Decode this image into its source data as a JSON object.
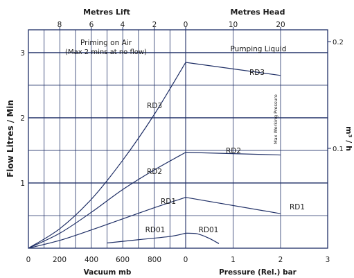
{
  "colors": {
    "frame": "#1f2f66",
    "grid": "#1f2f66",
    "curve": "#1f2f66",
    "text": "#1a1a1a"
  },
  "chart_data": {
    "type": "line",
    "y_axis_label": "Flow Litres / Min",
    "y_ticks": [
      "1",
      "2",
      "3"
    ],
    "y_range": [
      0,
      3.35
    ],
    "right_axis_label": "m³ / h",
    "right_ticks": [
      "0.1",
      "0.2"
    ],
    "bottom_left": {
      "label": "Vacuum mb",
      "ticks": [
        "0",
        "200",
        "400",
        "600",
        "800",
        "0"
      ],
      "range": [
        0,
        1000
      ]
    },
    "bottom_right": {
      "label": "Pressure (Rel.) bar",
      "ticks": [
        "1",
        "2",
        "3"
      ],
      "range": [
        0,
        3
      ]
    },
    "top_left": {
      "label": "Metres Lift",
      "ticks": [
        "8",
        "6",
        "4",
        "2",
        "0"
      ]
    },
    "top_right": {
      "label": "Metres Head",
      "ticks": [
        "10",
        "20"
      ]
    },
    "region_left_title": "Priming on Air",
    "region_left_subtitle": "(Max 2 mins at no flow)",
    "region_right_title": "Pumping Liquid",
    "max_pressure_label": "Max Working Pressure",
    "series": [
      {
        "name": "RD3",
        "vacuum": [
          [
            0,
            0
          ],
          [
            200,
            0.3
          ],
          [
            400,
            0.75
          ],
          [
            600,
            1.35
          ],
          [
            800,
            2.05
          ],
          [
            1000,
            2.85
          ]
        ],
        "pressure": [
          [
            0,
            2.85
          ],
          [
            2,
            2.65
          ]
        ]
      },
      {
        "name": "RD2",
        "vacuum": [
          [
            0,
            0
          ],
          [
            200,
            0.23
          ],
          [
            400,
            0.55
          ],
          [
            600,
            0.9
          ],
          [
            800,
            1.2
          ],
          [
            1000,
            1.47
          ]
        ],
        "pressure": [
          [
            0,
            1.47
          ],
          [
            2,
            1.43
          ]
        ]
      },
      {
        "name": "RD1",
        "vacuum": [
          [
            0,
            0
          ],
          [
            200,
            0.12
          ],
          [
            400,
            0.28
          ],
          [
            600,
            0.45
          ],
          [
            800,
            0.62
          ],
          [
            1000,
            0.78
          ]
        ],
        "pressure": [
          [
            0,
            0.78
          ],
          [
            2,
            0.53
          ]
        ]
      },
      {
        "name": "RD01",
        "vacuum": [
          [
            500,
            0.08
          ],
          [
            700,
            0.13
          ],
          [
            900,
            0.18
          ],
          [
            1000,
            0.23
          ]
        ],
        "pressure": [
          [
            0,
            0.23
          ],
          [
            0.25,
            0.22
          ],
          [
            0.5,
            0.15
          ],
          [
            0.7,
            0.07
          ]
        ]
      }
    ]
  }
}
